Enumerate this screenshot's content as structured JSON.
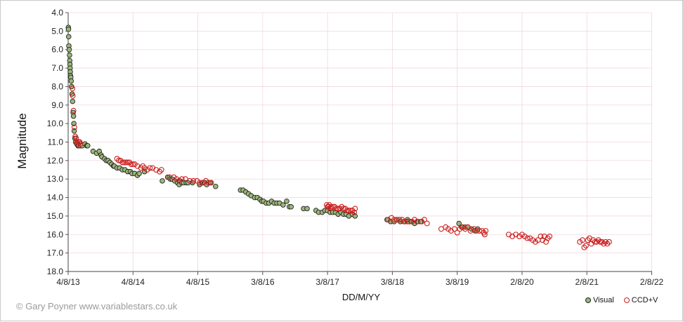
{
  "chart_data": {
    "type": "scatter",
    "title": "",
    "xlabel": "DD/M/YY",
    "ylabel": "Magnitude",
    "x_axis_unit": "days since 4/8/13",
    "xlim": [
      0,
      3287
    ],
    "ylim": [
      4.0,
      18.0
    ],
    "y_inverted": true,
    "grid": true,
    "legend_position": "bottom-right",
    "x_ticks": [
      {
        "day": 0,
        "label": "4/8/13"
      },
      {
        "day": 365,
        "label": "4/8/14"
      },
      {
        "day": 730,
        "label": "4/8/15"
      },
      {
        "day": 1095,
        "label": "3/8/16"
      },
      {
        "day": 1460,
        "label": "3/8/17"
      },
      {
        "day": 1825,
        "label": "3/8/18"
      },
      {
        "day": 2190,
        "label": "3/8/19"
      },
      {
        "day": 2555,
        "label": "2/8/20"
      },
      {
        "day": 2920,
        "label": "2/8/21"
      },
      {
        "day": 3285,
        "label": "2/8/22"
      }
    ],
    "y_ticks": [
      "4.0",
      "5.0",
      "6.0",
      "7.0",
      "8.0",
      "9.0",
      "10.0",
      "11.0",
      "12.0",
      "13.0",
      "14.0",
      "15.0",
      "16.0",
      "17.0",
      "18.0"
    ],
    "series": [
      {
        "name": "Visual",
        "marker": "filled-circle",
        "fill": "#9cb77a",
        "edge": "#222222",
        "points": [
          [
            1,
            4.8
          ],
          [
            2,
            4.9
          ],
          [
            3,
            5.3
          ],
          [
            4,
            5.8
          ],
          [
            6,
            6.0
          ],
          [
            8,
            6.3
          ],
          [
            9,
            6.6
          ],
          [
            10,
            6.8
          ],
          [
            11,
            7.0
          ],
          [
            12,
            7.2
          ],
          [
            13,
            7.4
          ],
          [
            15,
            7.5
          ],
          [
            17,
            7.7
          ],
          [
            19,
            8.0
          ],
          [
            22,
            8.4
          ],
          [
            25,
            8.8
          ],
          [
            28,
            9.4
          ],
          [
            30,
            9.6
          ],
          [
            32,
            10.0
          ],
          [
            34,
            10.4
          ],
          [
            38,
            10.8
          ],
          [
            42,
            11.0
          ],
          [
            48,
            11.1
          ],
          [
            55,
            11.2
          ],
          [
            60,
            11.2
          ],
          [
            70,
            11.2
          ],
          [
            80,
            11.2
          ],
          [
            95,
            11.1
          ],
          [
            105,
            11.2
          ],
          [
            110,
            11.2
          ],
          [
            140,
            11.5
          ],
          [
            160,
            11.6
          ],
          [
            175,
            11.5
          ],
          [
            185,
            11.7
          ],
          [
            190,
            11.8
          ],
          [
            205,
            11.9
          ],
          [
            215,
            12.0
          ],
          [
            225,
            12.0
          ],
          [
            235,
            12.1
          ],
          [
            245,
            12.2
          ],
          [
            255,
            12.3
          ],
          [
            260,
            12.3
          ],
          [
            275,
            12.4
          ],
          [
            290,
            12.4
          ],
          [
            305,
            12.5
          ],
          [
            320,
            12.5
          ],
          [
            335,
            12.6
          ],
          [
            350,
            12.6
          ],
          [
            360,
            12.7
          ],
          [
            375,
            12.7
          ],
          [
            390,
            12.8
          ],
          [
            400,
            12.7
          ],
          [
            430,
            12.6
          ],
          [
            530,
            13.1
          ],
          [
            560,
            12.9
          ],
          [
            575,
            13.0
          ],
          [
            585,
            13.0
          ],
          [
            600,
            13.1
          ],
          [
            615,
            13.2
          ],
          [
            625,
            13.3
          ],
          [
            630,
            13.1
          ],
          [
            640,
            13.2
          ],
          [
            650,
            13.2
          ],
          [
            665,
            13.2
          ],
          [
            675,
            13.2
          ],
          [
            700,
            13.2
          ],
          [
            740,
            13.3
          ],
          [
            755,
            13.2
          ],
          [
            770,
            13.2
          ],
          [
            780,
            13.3
          ],
          [
            800,
            13.2
          ],
          [
            830,
            13.4
          ],
          [
            970,
            13.6
          ],
          [
            985,
            13.6
          ],
          [
            1000,
            13.7
          ],
          [
            1015,
            13.8
          ],
          [
            1030,
            13.9
          ],
          [
            1050,
            14.0
          ],
          [
            1065,
            14.0
          ],
          [
            1080,
            14.1
          ],
          [
            1090,
            14.2
          ],
          [
            1100,
            14.2
          ],
          [
            1115,
            14.3
          ],
          [
            1130,
            14.3
          ],
          [
            1145,
            14.2
          ],
          [
            1160,
            14.3
          ],
          [
            1175,
            14.3
          ],
          [
            1190,
            14.3
          ],
          [
            1210,
            14.4
          ],
          [
            1230,
            14.2
          ],
          [
            1245,
            14.5
          ],
          [
            1255,
            14.5
          ],
          [
            1325,
            14.6
          ],
          [
            1345,
            14.6
          ],
          [
            1395,
            14.7
          ],
          [
            1410,
            14.8
          ],
          [
            1430,
            14.8
          ],
          [
            1445,
            14.7
          ],
          [
            1460,
            14.7
          ],
          [
            1475,
            14.8
          ],
          [
            1490,
            14.8
          ],
          [
            1505,
            14.8
          ],
          [
            1520,
            14.9
          ],
          [
            1535,
            14.8
          ],
          [
            1550,
            14.9
          ],
          [
            1565,
            14.9
          ],
          [
            1580,
            15.0
          ],
          [
            1600,
            14.9
          ],
          [
            1615,
            15.0
          ],
          [
            1795,
            15.2
          ],
          [
            1815,
            15.3
          ],
          [
            1835,
            15.3
          ],
          [
            1850,
            15.2
          ],
          [
            1870,
            15.3
          ],
          [
            1890,
            15.3
          ],
          [
            1910,
            15.2
          ],
          [
            1930,
            15.3
          ],
          [
            1950,
            15.4
          ],
          [
            1970,
            15.3
          ],
          [
            1985,
            15.3
          ],
          [
            2200,
            15.4
          ],
          [
            2215,
            15.6
          ],
          [
            2235,
            15.6
          ],
          [
            2250,
            15.6
          ],
          [
            2270,
            15.7
          ],
          [
            2290,
            15.8
          ],
          [
            2305,
            15.7
          ]
        ]
      },
      {
        "name": "CCD+V",
        "marker": "open-circle",
        "fill": "none",
        "edge": "#cc1f1f",
        "points": [
          [
            24,
            8.1
          ],
          [
            26,
            8.5
          ],
          [
            30,
            9.3
          ],
          [
            35,
            10.2
          ],
          [
            40,
            10.7
          ],
          [
            45,
            10.8
          ],
          [
            50,
            11.0
          ],
          [
            55,
            11.1
          ],
          [
            60,
            11.0
          ],
          [
            65,
            11.0
          ],
          [
            70,
            11.1
          ],
          [
            275,
            11.9
          ],
          [
            285,
            12.0
          ],
          [
            295,
            12.0
          ],
          [
            305,
            12.1
          ],
          [
            315,
            12.1
          ],
          [
            325,
            12.1
          ],
          [
            335,
            12.1
          ],
          [
            345,
            12.1
          ],
          [
            355,
            12.2
          ],
          [
            365,
            12.2
          ],
          [
            375,
            12.2
          ],
          [
            390,
            12.3
          ],
          [
            410,
            12.4
          ],
          [
            420,
            12.3
          ],
          [
            430,
            12.4
          ],
          [
            445,
            12.5
          ],
          [
            460,
            12.4
          ],
          [
            475,
            12.4
          ],
          [
            495,
            12.5
          ],
          [
            515,
            12.6
          ],
          [
            525,
            12.5
          ],
          [
            570,
            12.9
          ],
          [
            595,
            12.9
          ],
          [
            610,
            13.0
          ],
          [
            625,
            13.1
          ],
          [
            640,
            13.0
          ],
          [
            660,
            13.0
          ],
          [
            685,
            13.1
          ],
          [
            705,
            13.1
          ],
          [
            725,
            13.1
          ],
          [
            740,
            13.2
          ],
          [
            760,
            13.2
          ],
          [
            775,
            13.1
          ],
          [
            790,
            13.2
          ],
          [
            805,
            13.2
          ],
          [
            1455,
            14.4
          ],
          [
            1460,
            14.5
          ],
          [
            1465,
            14.5
          ],
          [
            1470,
            14.4
          ],
          [
            1475,
            14.6
          ],
          [
            1480,
            14.5
          ],
          [
            1490,
            14.5
          ],
          [
            1500,
            14.5
          ],
          [
            1510,
            14.6
          ],
          [
            1520,
            14.6
          ],
          [
            1530,
            14.6
          ],
          [
            1540,
            14.5
          ],
          [
            1550,
            14.6
          ],
          [
            1560,
            14.6
          ],
          [
            1570,
            14.7
          ],
          [
            1580,
            14.7
          ],
          [
            1590,
            14.7
          ],
          [
            1600,
            14.7
          ],
          [
            1610,
            14.8
          ],
          [
            1615,
            14.6
          ],
          [
            1800,
            15.2
          ],
          [
            1820,
            15.1
          ],
          [
            1835,
            15.2
          ],
          [
            1850,
            15.2
          ],
          [
            1865,
            15.2
          ],
          [
            1880,
            15.2
          ],
          [
            1895,
            15.3
          ],
          [
            1910,
            15.3
          ],
          [
            1920,
            15.3
          ],
          [
            1935,
            15.3
          ],
          [
            1950,
            15.2
          ],
          [
            1965,
            15.3
          ],
          [
            1990,
            15.3
          ],
          [
            2005,
            15.2
          ],
          [
            2020,
            15.4
          ],
          [
            2100,
            15.7
          ],
          [
            2125,
            15.6
          ],
          [
            2140,
            15.7
          ],
          [
            2155,
            15.8
          ],
          [
            2175,
            15.7
          ],
          [
            2190,
            15.9
          ],
          [
            2205,
            15.7
          ],
          [
            2220,
            15.6
          ],
          [
            2235,
            15.7
          ],
          [
            2250,
            15.6
          ],
          [
            2265,
            15.8
          ],
          [
            2285,
            15.7
          ],
          [
            2300,
            15.8
          ],
          [
            2315,
            15.8
          ],
          [
            2330,
            15.8
          ],
          [
            2340,
            15.9
          ],
          [
            2345,
            16.0
          ],
          [
            2350,
            15.8
          ],
          [
            2480,
            16.0
          ],
          [
            2500,
            16.1
          ],
          [
            2520,
            16.0
          ],
          [
            2540,
            16.1
          ],
          [
            2555,
            16.0
          ],
          [
            2570,
            16.1
          ],
          [
            2585,
            16.2
          ],
          [
            2600,
            16.2
          ],
          [
            2615,
            16.3
          ],
          [
            2630,
            16.4
          ],
          [
            2645,
            16.3
          ],
          [
            2660,
            16.1
          ],
          [
            2670,
            16.3
          ],
          [
            2680,
            16.1
          ],
          [
            2690,
            16.4
          ],
          [
            2700,
            16.2
          ],
          [
            2710,
            16.1
          ],
          [
            2880,
            16.4
          ],
          [
            2895,
            16.3
          ],
          [
            2905,
            16.7
          ],
          [
            2915,
            16.6
          ],
          [
            2925,
            16.3
          ],
          [
            2935,
            16.2
          ],
          [
            2945,
            16.5
          ],
          [
            2955,
            16.3
          ],
          [
            2965,
            16.4
          ],
          [
            2975,
            16.4
          ],
          [
            2985,
            16.3
          ],
          [
            2995,
            16.4
          ],
          [
            3005,
            16.4
          ],
          [
            3015,
            16.5
          ],
          [
            3025,
            16.4
          ],
          [
            3035,
            16.5
          ],
          [
            3045,
            16.4
          ]
        ]
      }
    ]
  },
  "credit": "© Gary Poyner  www.variablestars.co.uk",
  "legend": {
    "visual_label": "Visual",
    "ccd_label": "CCD+V"
  }
}
